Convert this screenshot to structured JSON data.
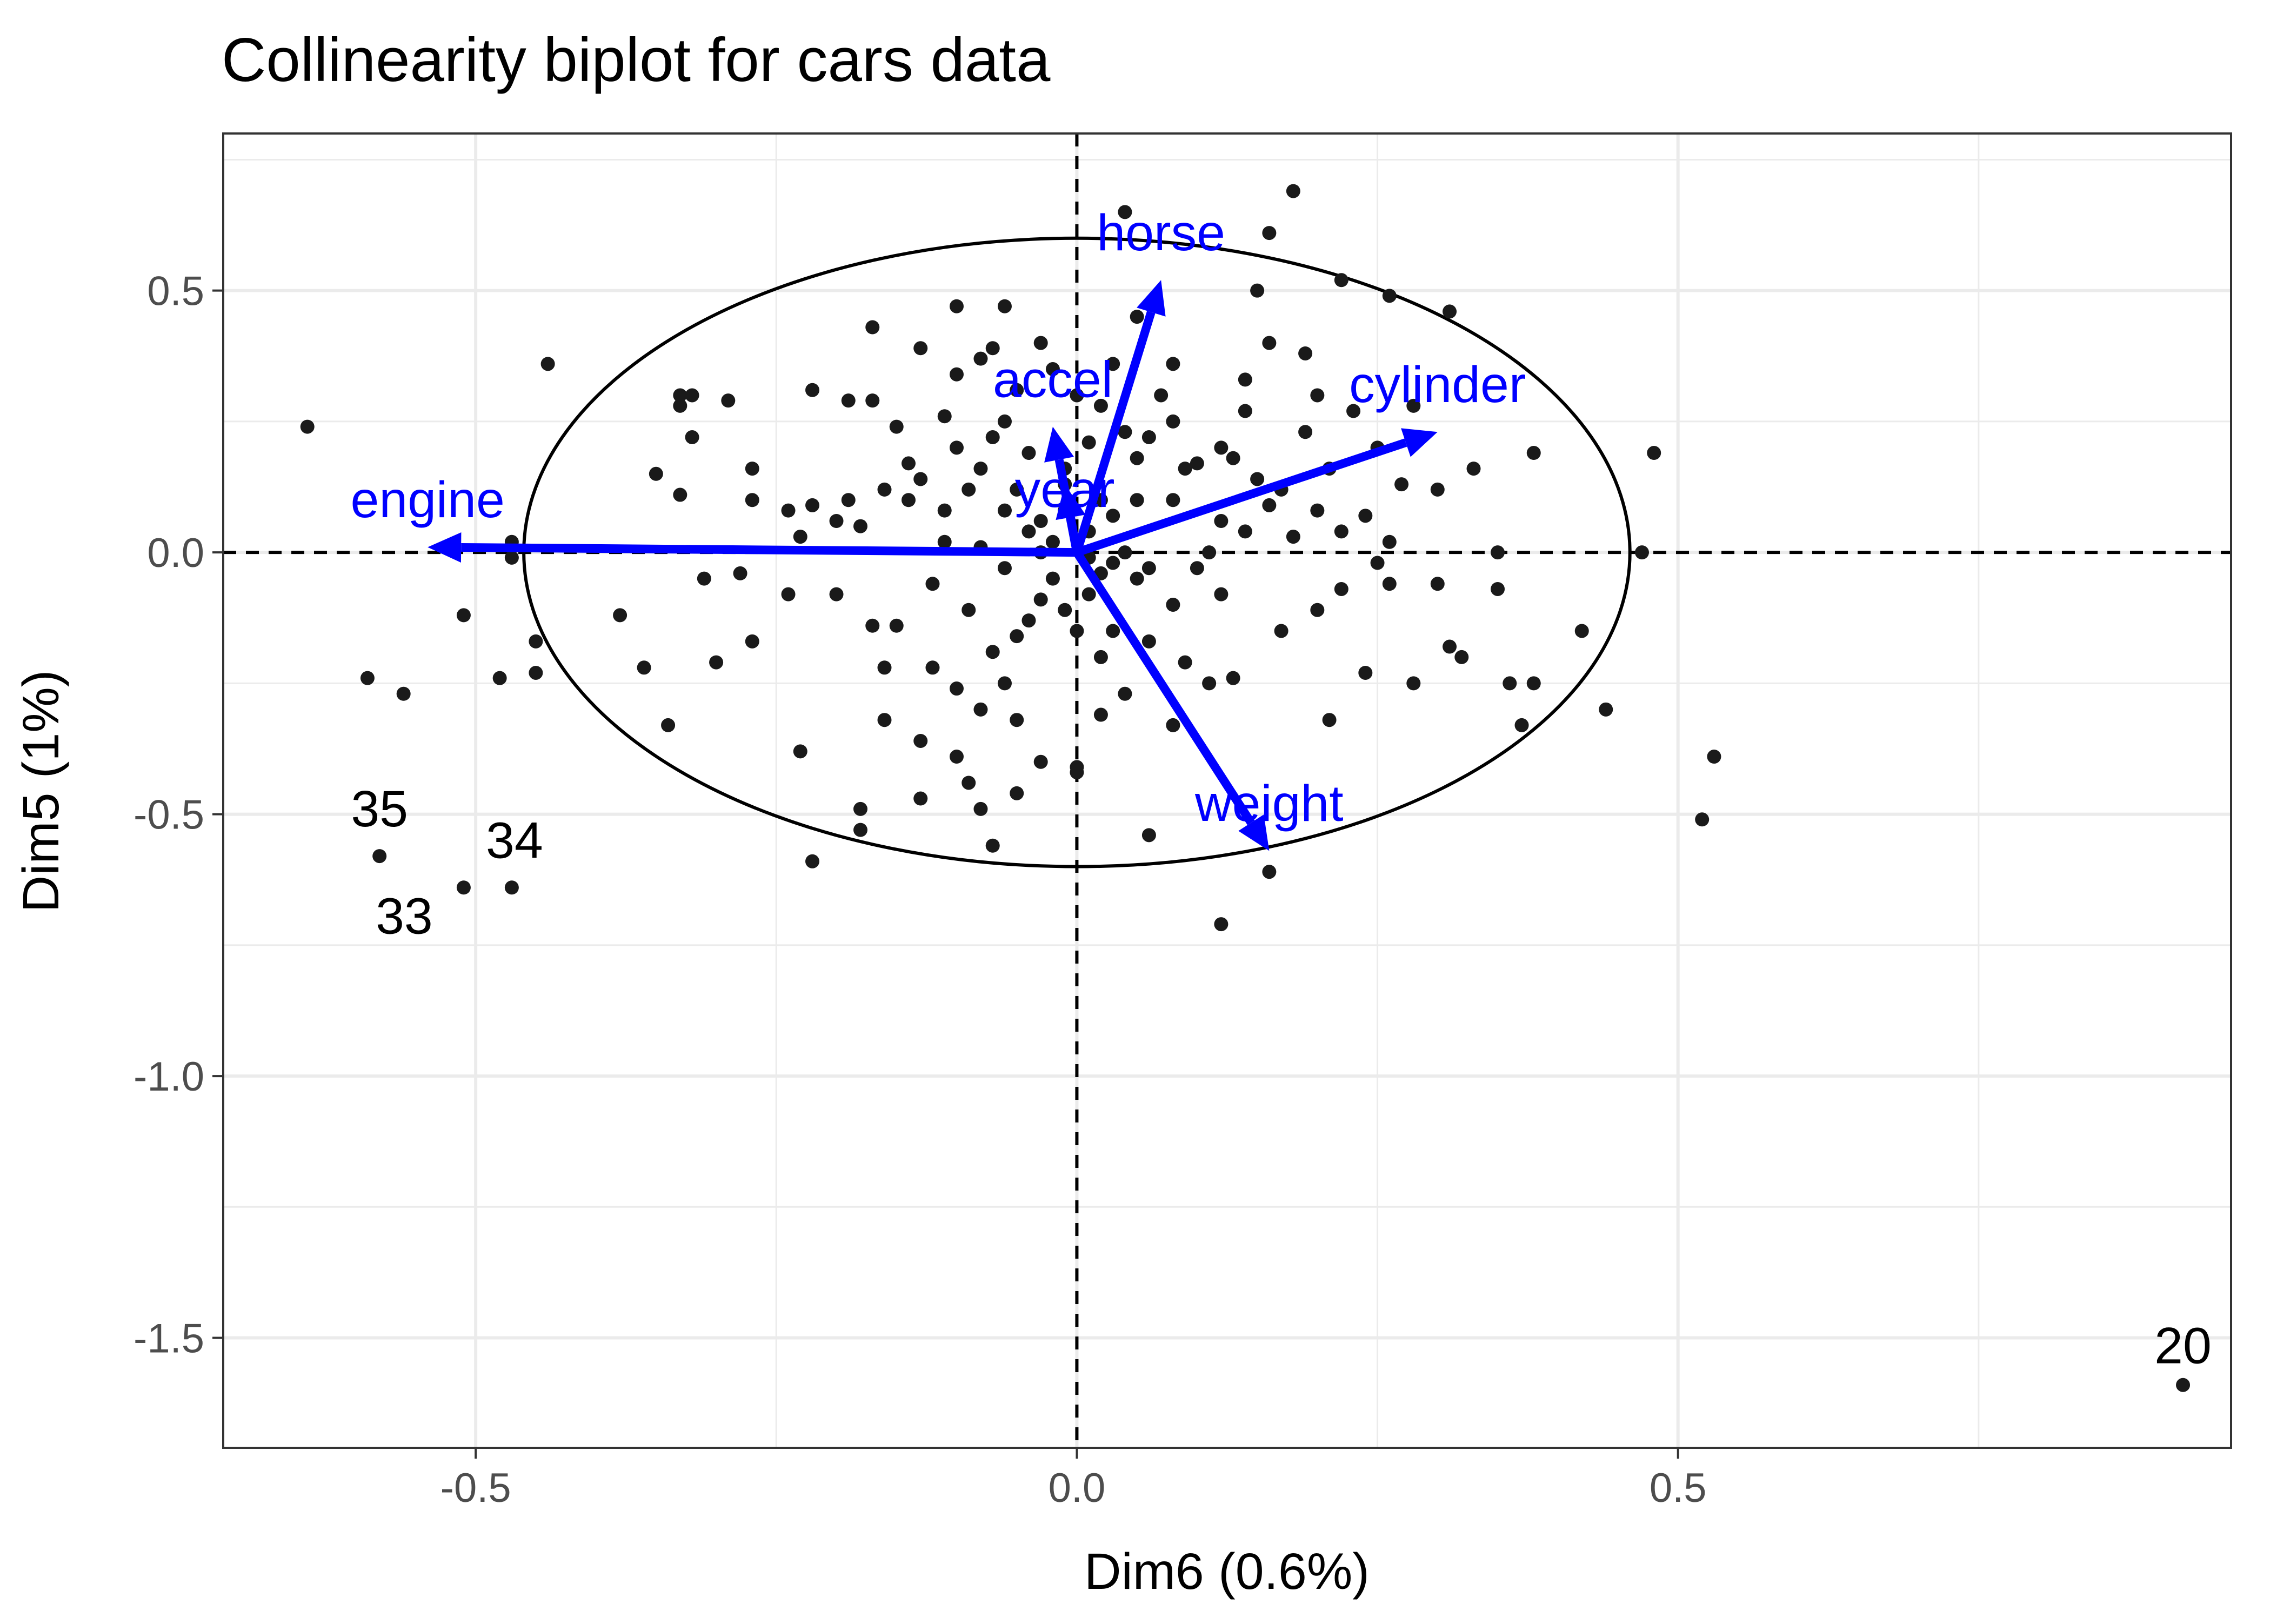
{
  "chart_data": {
    "type": "scatter",
    "title": "Collinearity biplot for cars data",
    "xlabel": "Dim6 (0.6%)",
    "ylabel": "Dim5 (1%)",
    "xlim": [
      -0.71,
      0.96
    ],
    "ylim": [
      -1.71,
      0.8
    ],
    "x_ticks": [
      -0.5,
      0.0,
      0.5
    ],
    "y_ticks": [
      -1.5,
      -1.0,
      -0.5,
      0.0,
      0.5
    ],
    "x_tick_labels": [
      "-0.5",
      "0.0",
      "0.5"
    ],
    "y_tick_labels": [
      "-1.5",
      "-1.0",
      "-0.5",
      "0.0",
      "0.5"
    ],
    "grid": true,
    "reference_lines": {
      "x": 0,
      "y": 0
    },
    "circle": {
      "center": [
        0,
        0
      ],
      "rx": 0.46,
      "ry": 0.6
    },
    "vector_color": "#0000ff",
    "point_color": "#1a1a1a",
    "vectors": [
      {
        "name": "engine",
        "x": -0.54,
        "y": 0.01,
        "label_x": -0.54,
        "label_y": 0.1
      },
      {
        "name": "cylinder",
        "x": 0.3,
        "y": 0.23,
        "label_x": 0.3,
        "label_y": 0.32
      },
      {
        "name": "horse",
        "x": 0.07,
        "y": 0.52,
        "label_x": 0.07,
        "label_y": 0.61
      },
      {
        "name": "accel",
        "x": -0.02,
        "y": 0.24,
        "label_x": -0.02,
        "label_y": 0.33
      },
      {
        "name": "year",
        "x": -0.01,
        "y": 0.13,
        "label_x": -0.01,
        "label_y": 0.12
      },
      {
        "name": "weight",
        "x": 0.16,
        "y": -0.57,
        "label_x": 0.16,
        "label_y": -0.48
      }
    ],
    "labeled_points": [
      {
        "label": "35",
        "x": -0.58,
        "y": -0.58
      },
      {
        "label": "34",
        "x": -0.47,
        "y": -0.64
      },
      {
        "label": "33",
        "x": -0.51,
        "y": -0.64
      },
      {
        "label": "20",
        "x": 0.92,
        "y": -1.59
      }
    ],
    "points": [
      [
        -0.64,
        0.24
      ],
      [
        -0.44,
        0.36
      ],
      [
        -0.51,
        -0.12
      ],
      [
        -0.59,
        -0.24
      ],
      [
        -0.56,
        -0.27
      ],
      [
        -0.48,
        -0.24
      ],
      [
        -0.45,
        -0.17
      ],
      [
        -0.45,
        -0.23
      ],
      [
        -0.47,
        -0.01
      ],
      [
        -0.47,
        0.02
      ],
      [
        -0.33,
        0.3
      ],
      [
        -0.33,
        0.28
      ],
      [
        -0.32,
        0.22
      ],
      [
        -0.32,
        0.3
      ],
      [
        -0.33,
        0.11
      ],
      [
        -0.27,
        0.16
      ],
      [
        -0.29,
        0.29
      ],
      [
        -0.24,
        0.08
      ],
      [
        -0.27,
        0.1
      ],
      [
        -0.35,
        0.15
      ],
      [
        -0.22,
        0.31
      ],
      [
        -0.19,
        0.29
      ],
      [
        -0.17,
        0.29
      ],
      [
        -0.22,
        0.09
      ],
      [
        -0.19,
        0.1
      ],
      [
        -0.2,
        0.06
      ],
      [
        -0.23,
        0.03
      ],
      [
        -0.18,
        0.05
      ],
      [
        -0.14,
        0.1
      ],
      [
        -0.11,
        0.08
      ],
      [
        -0.14,
        0.17
      ],
      [
        -0.15,
        0.24
      ],
      [
        -0.16,
        0.12
      ],
      [
        -0.13,
        0.14
      ],
      [
        -0.1,
        0.2
      ],
      [
        -0.11,
        0.26
      ],
      [
        -0.1,
        0.34
      ],
      [
        -0.13,
        0.39
      ],
      [
        -0.17,
        0.43
      ],
      [
        -0.06,
        0.47
      ],
      [
        -0.1,
        0.47
      ],
      [
        -0.07,
        0.39
      ],
      [
        -0.08,
        0.37
      ],
      [
        -0.03,
        0.4
      ],
      [
        -0.05,
        0.31
      ],
      [
        -0.06,
        0.25
      ],
      [
        -0.07,
        0.22
      ],
      [
        -0.08,
        0.16
      ],
      [
        -0.04,
        0.19
      ],
      [
        -0.05,
        0.12
      ],
      [
        -0.06,
        0.08
      ],
      [
        -0.03,
        0.06
      ],
      [
        -0.02,
        0.02
      ],
      [
        -0.04,
        0.04
      ],
      [
        -0.01,
        0.08
      ],
      [
        -0.01,
        0.13
      ],
      [
        0.02,
        0.1
      ],
      [
        0.01,
        0.04
      ],
      [
        0.03,
        0.07
      ],
      [
        0.05,
        0.1
      ],
      [
        0.05,
        0.18
      ],
      [
        0.06,
        0.22
      ],
      [
        0.08,
        0.25
      ],
      [
        0.07,
        0.3
      ],
      [
        0.08,
        0.36
      ],
      [
        0.05,
        0.45
      ],
      [
        0.03,
        0.36
      ],
      [
        0.02,
        0.28
      ],
      [
        0.1,
        0.17
      ],
      [
        0.12,
        0.2
      ],
      [
        0.14,
        0.27
      ],
      [
        0.14,
        0.33
      ],
      [
        0.16,
        0.4
      ],
      [
        0.15,
        0.14
      ],
      [
        0.12,
        0.06
      ],
      [
        0.11,
        0.0
      ],
      [
        0.14,
        0.04
      ],
      [
        0.17,
        0.12
      ],
      [
        0.19,
        0.23
      ],
      [
        0.21,
        0.16
      ],
      [
        0.2,
        0.08
      ],
      [
        0.18,
        0.03
      ],
      [
        0.22,
        0.04
      ],
      [
        0.24,
        0.07
      ],
      [
        0.26,
        0.02
      ],
      [
        0.27,
        0.13
      ],
      [
        0.28,
        0.28
      ],
      [
        0.31,
        0.46
      ],
      [
        0.26,
        0.49
      ],
      [
        0.22,
        0.52
      ],
      [
        0.19,
        0.38
      ],
      [
        0.15,
        0.5
      ],
      [
        0.04,
        0.65
      ],
      [
        0.16,
        0.61
      ],
      [
        0.18,
        0.69
      ],
      [
        0.33,
        0.16
      ],
      [
        0.38,
        0.19
      ],
      [
        0.35,
        0.0
      ],
      [
        0.48,
        0.19
      ],
      [
        0.47,
        0.0
      ],
      [
        0.26,
        -0.06
      ],
      [
        0.22,
        -0.07
      ],
      [
        0.17,
        -0.15
      ],
      [
        0.12,
        -0.08
      ],
      [
        0.08,
        -0.1
      ],
      [
        0.05,
        -0.05
      ],
      [
        0.03,
        -0.02
      ],
      [
        0.01,
        -0.08
      ],
      [
        0.03,
        -0.15
      ],
      [
        0.06,
        -0.17
      ],
      [
        0.09,
        -0.21
      ],
      [
        0.11,
        -0.25
      ],
      [
        0.13,
        -0.24
      ],
      [
        0.08,
        -0.33
      ],
      [
        0.04,
        -0.27
      ],
      [
        0.02,
        -0.2
      ],
      [
        0.0,
        -0.15
      ],
      [
        -0.01,
        -0.11
      ],
      [
        -0.03,
        -0.09
      ],
      [
        -0.05,
        -0.16
      ],
      [
        -0.07,
        -0.19
      ],
      [
        -0.06,
        -0.25
      ],
      [
        -0.1,
        -0.26
      ],
      [
        -0.08,
        -0.3
      ],
      [
        -0.05,
        -0.32
      ],
      [
        -0.1,
        -0.39
      ],
      [
        -0.13,
        -0.36
      ],
      [
        -0.09,
        -0.44
      ],
      [
        -0.13,
        -0.47
      ],
      [
        -0.16,
        -0.32
      ],
      [
        -0.16,
        -0.22
      ],
      [
        -0.12,
        -0.22
      ],
      [
        -0.15,
        -0.14
      ],
      [
        -0.17,
        -0.14
      ],
      [
        -0.2,
        -0.08
      ],
      [
        -0.24,
        -0.08
      ],
      [
        -0.28,
        -0.04
      ],
      [
        -0.31,
        -0.05
      ],
      [
        -0.27,
        -0.17
      ],
      [
        -0.3,
        -0.21
      ],
      [
        -0.36,
        -0.22
      ],
      [
        -0.38,
        -0.12
      ],
      [
        -0.34,
        -0.33
      ],
      [
        -0.23,
        -0.38
      ],
      [
        -0.18,
        -0.49
      ],
      [
        -0.18,
        -0.53
      ],
      [
        -0.22,
        -0.59
      ],
      [
        -0.07,
        -0.56
      ],
      [
        -0.08,
        -0.49
      ],
      [
        -0.05,
        -0.46
      ],
      [
        0.0,
        -0.41
      ],
      [
        0.06,
        -0.54
      ],
      [
        0.12,
        -0.71
      ],
      [
        0.16,
        -0.61
      ],
      [
        0.21,
        -0.32
      ],
      [
        0.24,
        -0.23
      ],
      [
        0.28,
        -0.25
      ],
      [
        0.31,
        -0.18
      ],
      [
        0.32,
        -0.2
      ],
      [
        0.36,
        -0.25
      ],
      [
        0.37,
        -0.33
      ],
      [
        0.38,
        -0.25
      ],
      [
        0.42,
        -0.15
      ],
      [
        0.44,
        -0.3
      ],
      [
        0.52,
        -0.51
      ],
      [
        0.53,
        -0.39
      ],
      [
        0.35,
        -0.07
      ],
      [
        0.3,
        -0.06
      ],
      [
        0.25,
        -0.02
      ],
      [
        0.2,
        -0.11
      ],
      [
        -0.02,
        -0.05
      ],
      [
        0.02,
        -0.04
      ],
      [
        -0.03,
        0.0
      ],
      [
        0.01,
        -0.01
      ],
      [
        0.04,
        0.0
      ],
      [
        0.06,
        -0.03
      ],
      [
        -0.06,
        -0.03
      ],
      [
        -0.08,
        0.01
      ],
      [
        -0.01,
        0.16
      ],
      [
        0.01,
        0.21
      ],
      [
        0.0,
        0.3
      ],
      [
        0.04,
        0.23
      ],
      [
        0.08,
        0.1
      ],
      [
        0.09,
        0.16
      ],
      [
        -0.09,
        0.12
      ],
      [
        -0.11,
        0.02
      ],
      [
        -0.12,
        -0.06
      ],
      [
        -0.09,
        -0.11
      ],
      [
        -0.04,
        -0.13
      ],
      [
        0.02,
        -0.31
      ],
      [
        0.0,
        -0.42
      ],
      [
        -0.03,
        -0.4
      ],
      [
        0.1,
        -0.03
      ],
      [
        0.16,
        0.09
      ],
      [
        0.23,
        0.27
      ],
      [
        0.2,
        0.3
      ],
      [
        0.25,
        0.2
      ],
      [
        0.3,
        0.12
      ],
      [
        0.13,
        0.18
      ],
      [
        -0.02,
        0.35
      ]
    ]
  }
}
